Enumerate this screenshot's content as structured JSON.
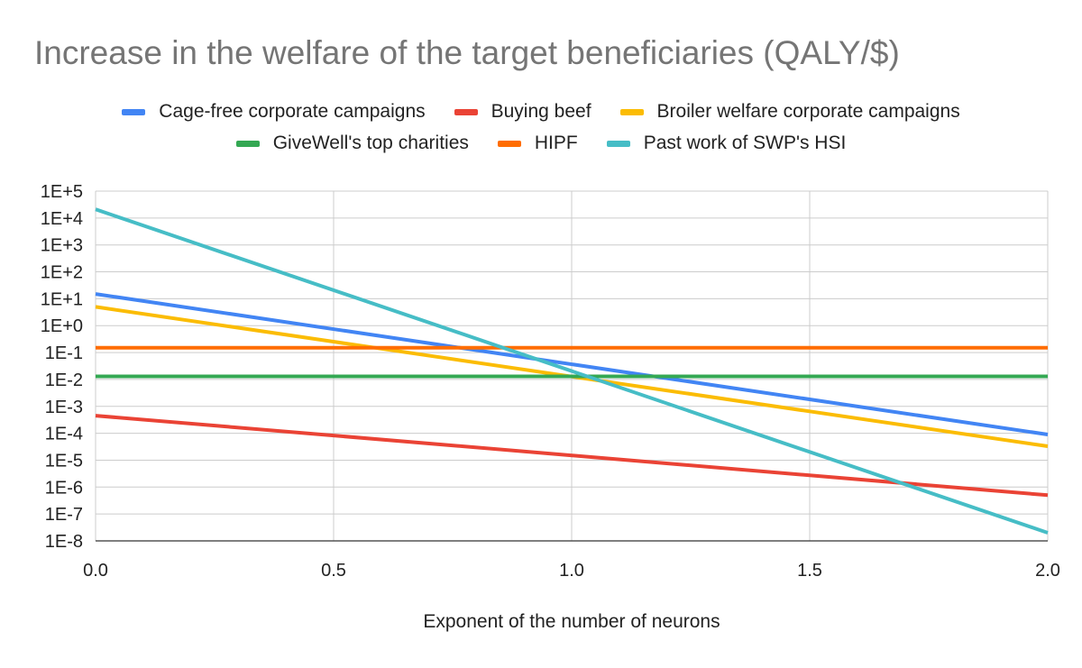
{
  "chart_data": {
    "type": "line",
    "title": "Increase in the welfare of the target beneficiaries (QALY/$)",
    "xlabel": "Exponent of the number of neurons",
    "ylabel": "",
    "y_scale": "log",
    "xlim": [
      0,
      2
    ],
    "ylim": [
      1e-08,
      100000
    ],
    "grid": true,
    "legend_position": "top",
    "x_ticks": [
      "0.0",
      "0.5",
      "1.0",
      "1.5",
      "2.0"
    ],
    "y_ticks": [
      "1E-8",
      "1E-7",
      "1E-6",
      "1E-5",
      "1E-4",
      "1E-3",
      "1E-2",
      "1E-1",
      "1E+0",
      "1E+1",
      "1E+2",
      "1E+3",
      "1E+4",
      "1E+5"
    ],
    "series": [
      {
        "name": "Cage-free corporate campaigns",
        "color": "#4285f4",
        "x": [
          0,
          2
        ],
        "y": [
          15,
          9e-05
        ]
      },
      {
        "name": "Buying beef",
        "color": "#ea4335",
        "x": [
          0,
          2
        ],
        "y": [
          0.00045,
          5e-07
        ]
      },
      {
        "name": "Broiler welfare corporate campaigns",
        "color": "#fbbc04",
        "x": [
          0,
          2
        ],
        "y": [
          5,
          3.3e-05
        ]
      },
      {
        "name": "GiveWell's top charities",
        "color": "#34a853",
        "x": [
          0,
          2
        ],
        "y": [
          0.013,
          0.013
        ]
      },
      {
        "name": "HIPF",
        "color": "#ff6d01",
        "x": [
          0,
          2
        ],
        "y": [
          0.15,
          0.15
        ]
      },
      {
        "name": "Past work of SWP's HSI",
        "color": "#46bdc6",
        "x": [
          0,
          2
        ],
        "y": [
          21000,
          2e-08
        ]
      }
    ]
  }
}
